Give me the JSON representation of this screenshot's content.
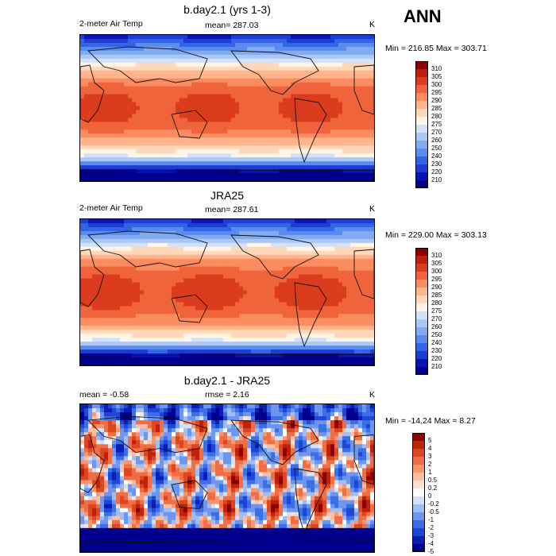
{
  "season": "ANN",
  "panels": [
    {
      "title": "b.day2.1 (yrs 1-3)",
      "left_label": "2-meter Air Temp",
      "center_label": "mean= 287.03",
      "units": "K",
      "minmax": "Min = 216.85 Max = 303.71"
    },
    {
      "title": "JRA25",
      "left_label": "2-meter Air Temp",
      "center_label": "mean= 287.61",
      "units": "K",
      "minmax": "Min = 229.00 Max = 303.13"
    },
    {
      "title": "b.day2.1 - JRA25",
      "left_label": "mean =  -0.58",
      "center_label": "rmse =   2.16",
      "units": "K",
      "minmax": "Min = -14.24 Max =   8.27"
    }
  ],
  "colors": {
    "temp_levels": [
      "#00008c",
      "#0a14b4",
      "#1e3cd2",
      "#3264e6",
      "#5a8cf0",
      "#82aaf0",
      "#aac8f5",
      "#d2e1fa",
      "#fff5e6",
      "#ffd7b9",
      "#ffb48c",
      "#fa8c5f",
      "#f0643c",
      "#dc3c1e",
      "#be1e0a",
      "#8c0000"
    ],
    "diff_levels": [
      "#00008c",
      "#0a1eb4",
      "#1e46d7",
      "#3c6ee6",
      "#6e96f0",
      "#a0bef5",
      "#d2e1fa",
      "#ffffff",
      "#ffe1d2",
      "#ffbea0",
      "#fa966e",
      "#f06e46",
      "#dc4623",
      "#be230a",
      "#8c0000"
    ]
  },
  "chart_data": [
    {
      "type": "heatmap",
      "title": "b.day2.1 (yrs 1-3)",
      "variable": "2-meter Air Temp",
      "units": "K",
      "mean": 287.03,
      "min": 216.85,
      "max": 303.71,
      "colorbar_labels": [
        "310",
        "305",
        "300",
        "295",
        "290",
        "285",
        "280",
        "275",
        "270",
        "260",
        "250",
        "240",
        "230",
        "220",
        "210"
      ]
    },
    {
      "type": "heatmap",
      "title": "JRA25",
      "variable": "2-meter Air Temp",
      "units": "K",
      "mean": 287.61,
      "min": 229.0,
      "max": 303.13,
      "colorbar_labels": [
        "310",
        "305",
        "300",
        "295",
        "290",
        "285",
        "280",
        "275",
        "270",
        "260",
        "250",
        "240",
        "230",
        "220",
        "210"
      ]
    },
    {
      "type": "heatmap",
      "title": "b.day2.1 - JRA25",
      "units": "K",
      "mean": -0.58,
      "rmse": 2.16,
      "min": -14.24,
      "max": 8.27,
      "colorbar_labels": [
        "5",
        "4",
        "3",
        "2",
        "1",
        "0.5",
        "0.2",
        "0",
        "-0.2",
        "-0.5",
        "-1",
        "-2",
        "-3",
        "-4",
        "-5"
      ]
    }
  ]
}
